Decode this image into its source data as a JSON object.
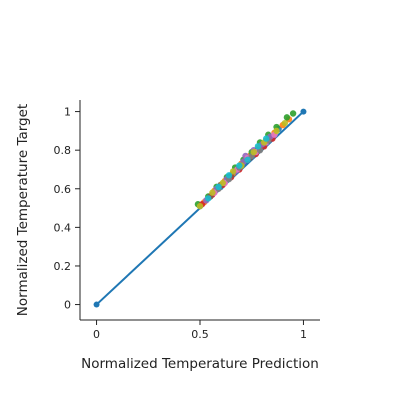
{
  "chart_data": {
    "type": "scatter",
    "title": "",
    "xlabel": "Normalized Temperature Prediction",
    "ylabel": "Normalized Temperature Target",
    "xlim": [
      -0.08,
      1.08
    ],
    "ylim": [
      -0.08,
      1.06
    ],
    "x_ticks": [
      "0",
      "0.5",
      "1"
    ],
    "x_tick_values": [
      0,
      0.5,
      1
    ],
    "y_ticks": [
      "0",
      "0.2",
      "0.4",
      "0.6",
      "0.8",
      "1"
    ],
    "y_tick_values": [
      0,
      0.2,
      0.4,
      0.6,
      0.8,
      1
    ],
    "grid": false,
    "legend": "none",
    "reference_line": {
      "color": "#1f77b4",
      "points": [
        [
          0,
          0
        ],
        [
          1,
          1
        ]
      ]
    },
    "series": [
      {
        "color": "#1f77b4",
        "points": [
          [
            0.5,
            0.51
          ],
          [
            0.55,
            0.56
          ],
          [
            0.6,
            0.61
          ],
          [
            0.64,
            0.66
          ],
          [
            0.68,
            0.7
          ],
          [
            0.72,
            0.74
          ],
          [
            0.76,
            0.78
          ],
          [
            0.8,
            0.82
          ],
          [
            0.84,
            0.87
          ],
          [
            0.88,
            0.91
          ]
        ]
      },
      {
        "color": "#ff7f0e",
        "points": [
          [
            0.52,
            0.53
          ],
          [
            0.57,
            0.59
          ],
          [
            0.62,
            0.64
          ],
          [
            0.66,
            0.68
          ],
          [
            0.7,
            0.73
          ],
          [
            0.74,
            0.77
          ],
          [
            0.78,
            0.81
          ],
          [
            0.82,
            0.85
          ],
          [
            0.86,
            0.89
          ],
          [
            0.9,
            0.93
          ],
          [
            0.93,
            0.96
          ]
        ]
      },
      {
        "color": "#2ca02c",
        "points": [
          [
            0.49,
            0.52
          ],
          [
            0.54,
            0.56
          ],
          [
            0.58,
            0.61
          ],
          [
            0.63,
            0.66
          ],
          [
            0.67,
            0.71
          ],
          [
            0.71,
            0.75
          ],
          [
            0.75,
            0.79
          ],
          [
            0.79,
            0.84
          ],
          [
            0.83,
            0.88
          ],
          [
            0.87,
            0.92
          ],
          [
            0.92,
            0.97
          ],
          [
            0.95,
            0.99
          ]
        ]
      },
      {
        "color": "#d62728",
        "points": [
          [
            0.51,
            0.52
          ],
          [
            0.56,
            0.57
          ],
          [
            0.61,
            0.62
          ],
          [
            0.65,
            0.66
          ],
          [
            0.69,
            0.7
          ],
          [
            0.73,
            0.75
          ],
          [
            0.77,
            0.78
          ],
          [
            0.81,
            0.82
          ],
          [
            0.85,
            0.86
          ]
        ]
      },
      {
        "color": "#9467bd",
        "points": [
          [
            0.53,
            0.54
          ],
          [
            0.58,
            0.6
          ],
          [
            0.63,
            0.65
          ],
          [
            0.67,
            0.69
          ],
          [
            0.71,
            0.74
          ],
          [
            0.72,
            0.77
          ],
          [
            0.76,
            0.8
          ],
          [
            0.8,
            0.83
          ],
          [
            0.84,
            0.87
          ]
        ]
      },
      {
        "color": "#8c564b",
        "points": [
          [
            0.55,
            0.56
          ],
          [
            0.6,
            0.62
          ],
          [
            0.65,
            0.67
          ],
          [
            0.7,
            0.72
          ],
          [
            0.74,
            0.76
          ],
          [
            0.78,
            0.8
          ]
        ]
      },
      {
        "color": "#e377c2",
        "points": [
          [
            0.57,
            0.58
          ],
          [
            0.62,
            0.63
          ],
          [
            0.68,
            0.7
          ],
          [
            0.73,
            0.76
          ],
          [
            0.77,
            0.79
          ],
          [
            0.82,
            0.84
          ],
          [
            0.86,
            0.88
          ]
        ]
      },
      {
        "color": "#7f7f7f",
        "points": [
          [
            0.59,
            0.6
          ],
          [
            0.64,
            0.65
          ],
          [
            0.69,
            0.71
          ],
          [
            0.75,
            0.77
          ],
          [
            0.79,
            0.8
          ],
          [
            0.83,
            0.85
          ]
        ]
      },
      {
        "color": "#bcbd22",
        "points": [
          [
            0.5,
            0.51
          ],
          [
            0.56,
            0.58
          ],
          [
            0.61,
            0.63
          ],
          [
            0.66,
            0.69
          ],
          [
            0.7,
            0.72
          ],
          [
            0.76,
            0.79
          ],
          [
            0.81,
            0.84
          ],
          [
            0.87,
            0.9
          ],
          [
            0.91,
            0.94
          ]
        ]
      },
      {
        "color": "#17becf",
        "points": [
          [
            0.54,
            0.55
          ],
          [
            0.59,
            0.61
          ],
          [
            0.64,
            0.67
          ],
          [
            0.69,
            0.72
          ],
          [
            0.73,
            0.75
          ],
          [
            0.78,
            0.82
          ],
          [
            0.82,
            0.86
          ]
        ]
      }
    ]
  }
}
